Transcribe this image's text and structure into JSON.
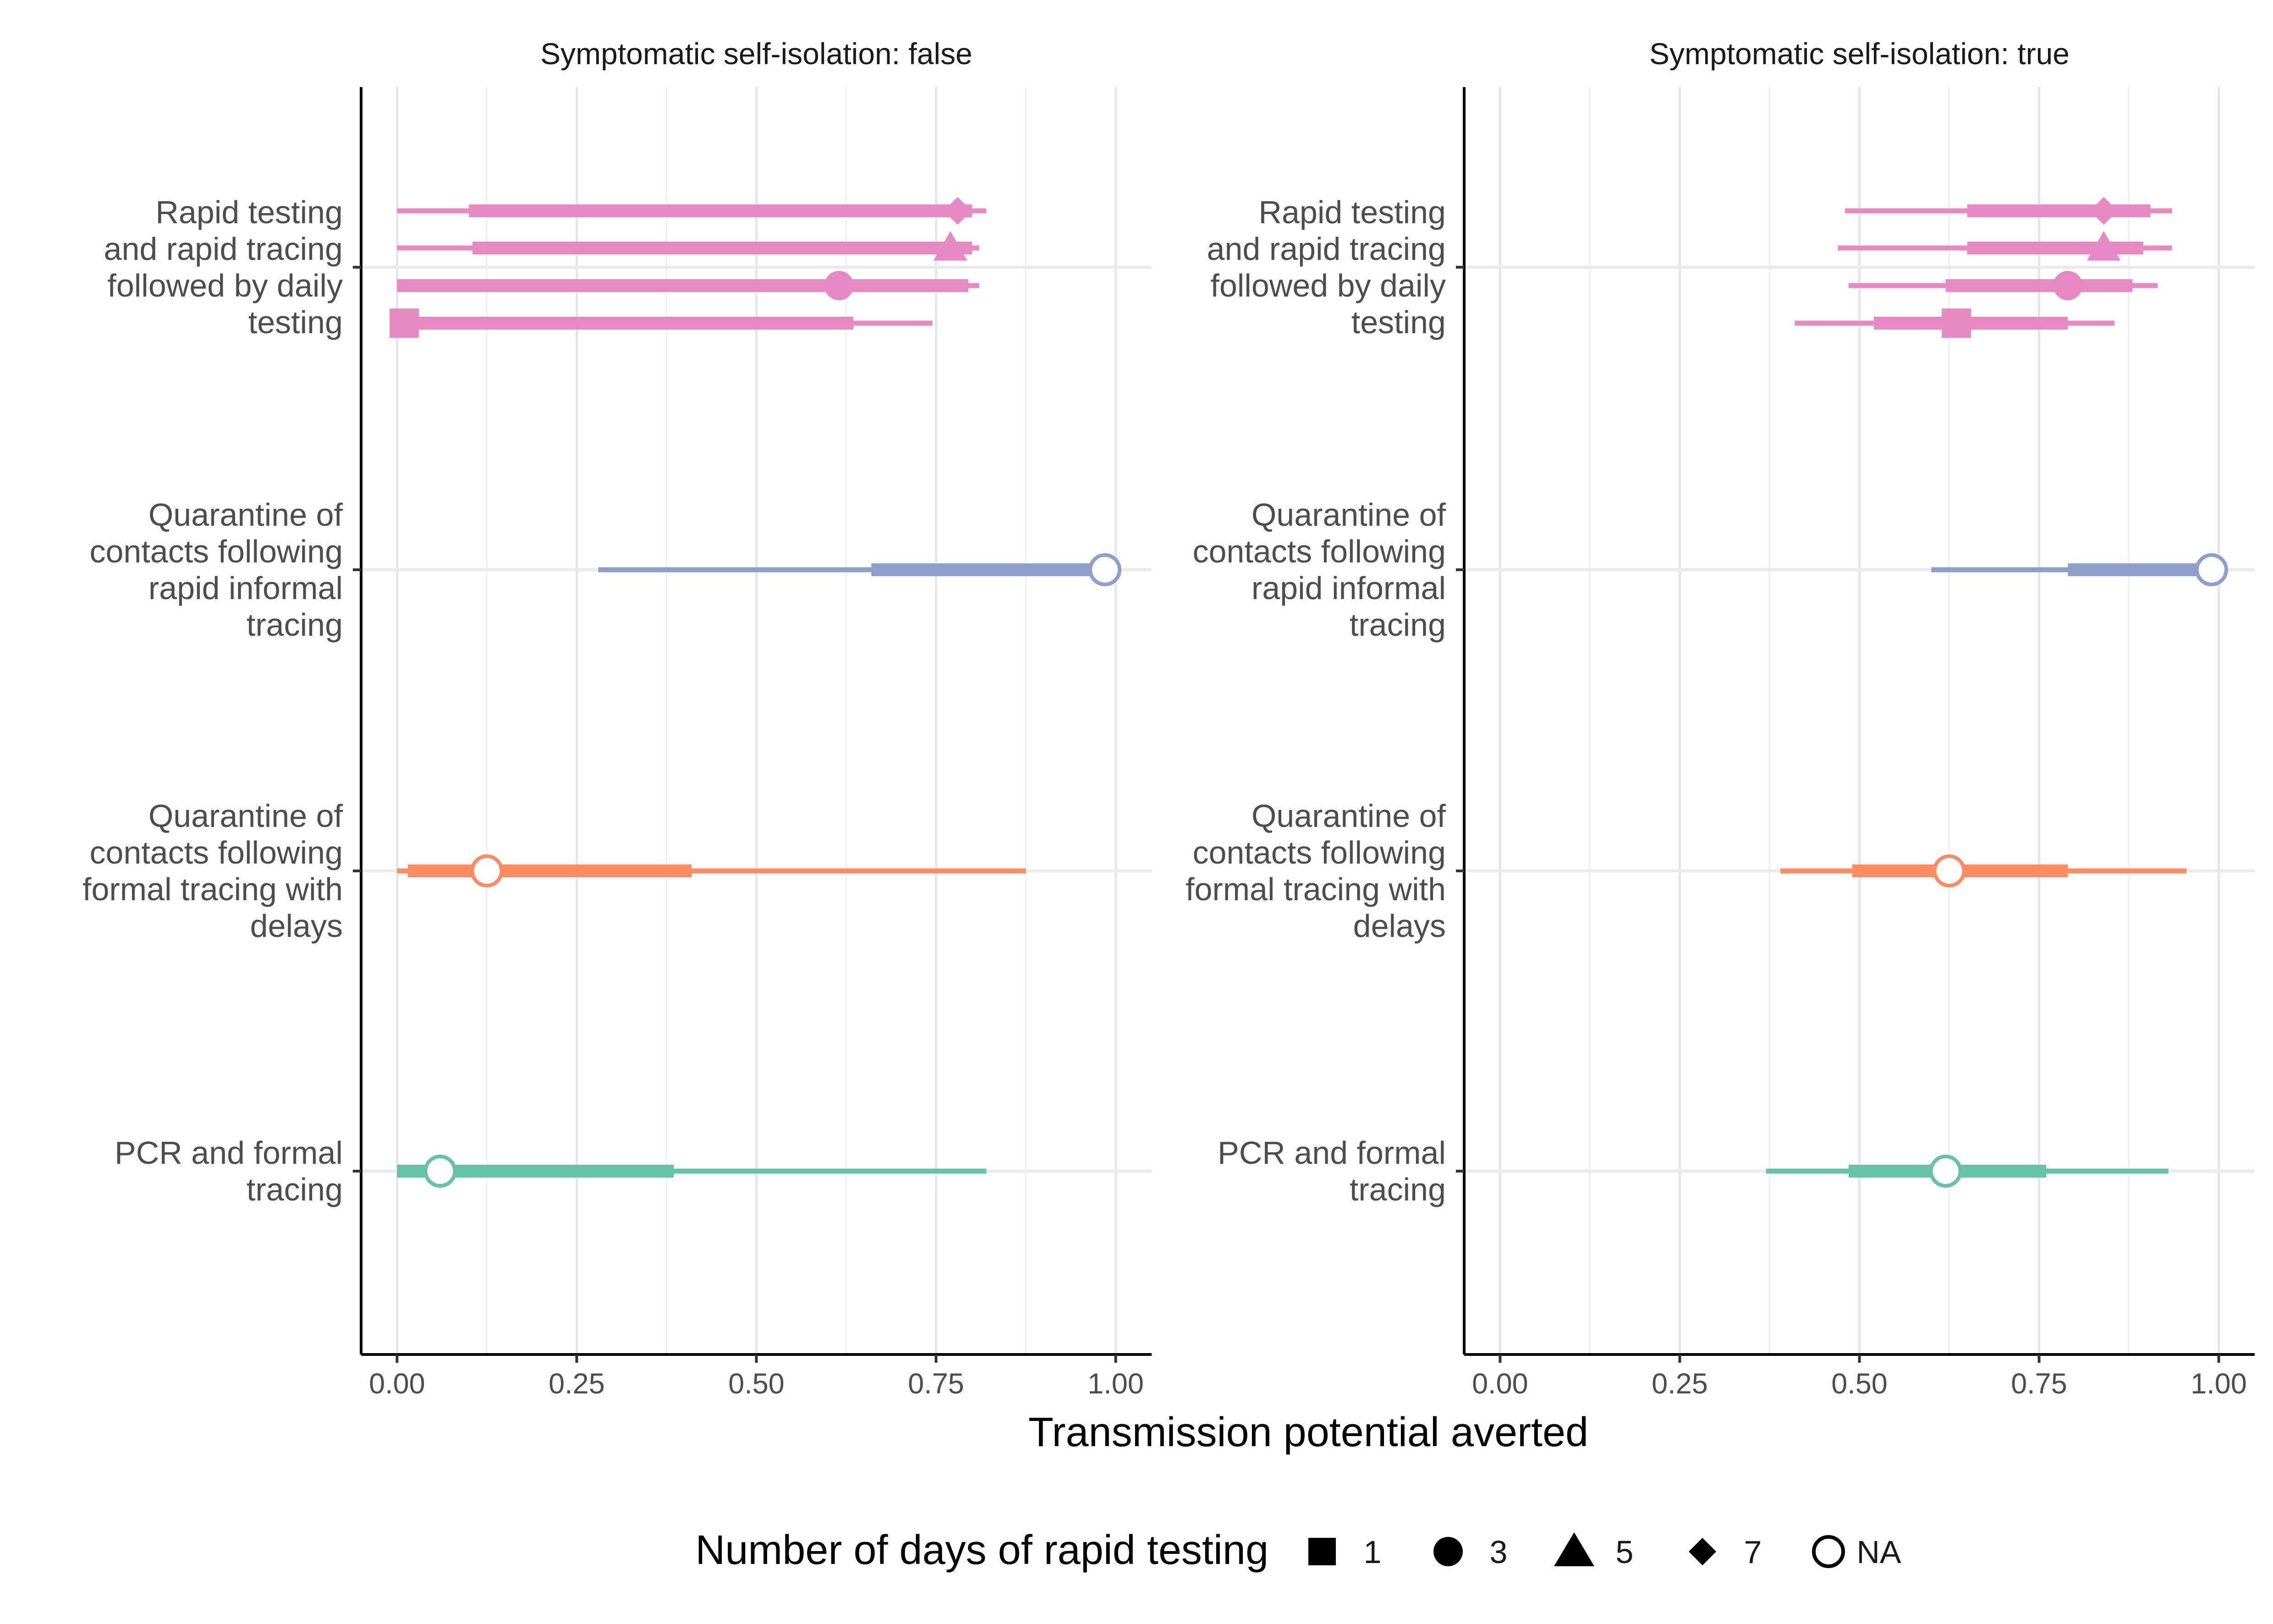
{
  "chart_data": {
    "type": "interval",
    "xlabel": "Transmission potential averted",
    "xlim": [
      -0.05,
      1.05
    ],
    "xticks": [
      "0.00",
      "0.25",
      "0.50",
      "0.75",
      "1.00"
    ],
    "xtick_values": [
      0,
      0.25,
      0.5,
      0.75,
      1.0
    ],
    "grid": true,
    "legend_placement": "bottom",
    "categories": [
      "Rapid testing and rapid tracing followed by daily testing",
      "Quarantine of contacts following rapid informal tracing",
      "Quarantine of contacts following formal tracing with delays",
      "PCR and formal tracing"
    ],
    "category_labels": [
      [
        "Rapid testing",
        "and rapid tracing",
        "followed by daily",
        "testing"
      ],
      [
        "Quarantine of",
        "contacts following",
        "rapid informal",
        "tracing"
      ],
      [
        "Quarantine of",
        "contacts following",
        "formal tracing with",
        "delays"
      ],
      [
        "PCR and formal",
        "tracing"
      ]
    ],
    "colors": {
      "Rapid testing and rapid tracing followed by daily testing": "#e78ac3",
      "Quarantine of contacts following rapid informal tracing": "#8da0cb",
      "Quarantine of contacts following formal tracing with delays": "#fc8d62",
      "PCR and formal tracing": "#66c2a5"
    },
    "legend": {
      "title": "Number of days of rapid testing",
      "entries": [
        {
          "label": "1",
          "shape": "square"
        },
        {
          "label": "3",
          "shape": "circle"
        },
        {
          "label": "5",
          "shape": "triangle"
        },
        {
          "label": "7",
          "shape": "diamond"
        },
        {
          "label": "NA",
          "shape": "open-circle"
        }
      ]
    },
    "panels": [
      {
        "title": "Symptomatic self-isolation: false",
        "series": [
          {
            "category": 0,
            "days": "7",
            "median": 0.78,
            "inner": [
              0.1,
              0.8
            ],
            "outer": [
              0.0,
              0.82
            ]
          },
          {
            "category": 0,
            "days": "5",
            "median": 0.77,
            "inner": [
              0.105,
              0.8
            ],
            "outer": [
              0.0,
              0.81
            ]
          },
          {
            "category": 0,
            "days": "3",
            "median": 0.615,
            "inner": [
              0.0,
              0.795
            ],
            "outer": [
              0.0,
              0.81
            ]
          },
          {
            "category": 0,
            "days": "1",
            "median": 0.01,
            "inner": [
              0.0,
              0.635
            ],
            "outer": [
              0.0,
              0.745
            ]
          },
          {
            "category": 1,
            "days": "NA",
            "median": 0.985,
            "inner": [
              0.66,
              0.99
            ],
            "outer": [
              0.28,
              0.99
            ]
          },
          {
            "category": 2,
            "days": "NA",
            "median": 0.125,
            "inner": [
              0.015,
              0.41
            ],
            "outer": [
              0.0,
              0.875
            ]
          },
          {
            "category": 3,
            "days": "NA",
            "median": 0.06,
            "inner": [
              0.0,
              0.385
            ],
            "outer": [
              0.0,
              0.82
            ]
          }
        ]
      },
      {
        "title": "Symptomatic self-isolation: true",
        "series": [
          {
            "category": 0,
            "days": "7",
            "median": 0.84,
            "inner": [
              0.65,
              0.905
            ],
            "outer": [
              0.48,
              0.935
            ]
          },
          {
            "category": 0,
            "days": "5",
            "median": 0.84,
            "inner": [
              0.65,
              0.895
            ],
            "outer": [
              0.47,
              0.935
            ]
          },
          {
            "category": 0,
            "days": "3",
            "median": 0.79,
            "inner": [
              0.62,
              0.88
            ],
            "outer": [
              0.485,
              0.915
            ]
          },
          {
            "category": 0,
            "days": "1",
            "median": 0.635,
            "inner": [
              0.52,
              0.79
            ],
            "outer": [
              0.41,
              0.855
            ]
          },
          {
            "category": 1,
            "days": "NA",
            "median": 0.99,
            "inner": [
              0.79,
              0.995
            ],
            "outer": [
              0.6,
              0.995
            ]
          },
          {
            "category": 2,
            "days": "NA",
            "median": 0.625,
            "inner": [
              0.49,
              0.79
            ],
            "outer": [
              0.39,
              0.955
            ]
          },
          {
            "category": 3,
            "days": "NA",
            "median": 0.62,
            "inner": [
              0.485,
              0.76
            ],
            "outer": [
              0.37,
              0.93
            ]
          }
        ]
      }
    ]
  }
}
